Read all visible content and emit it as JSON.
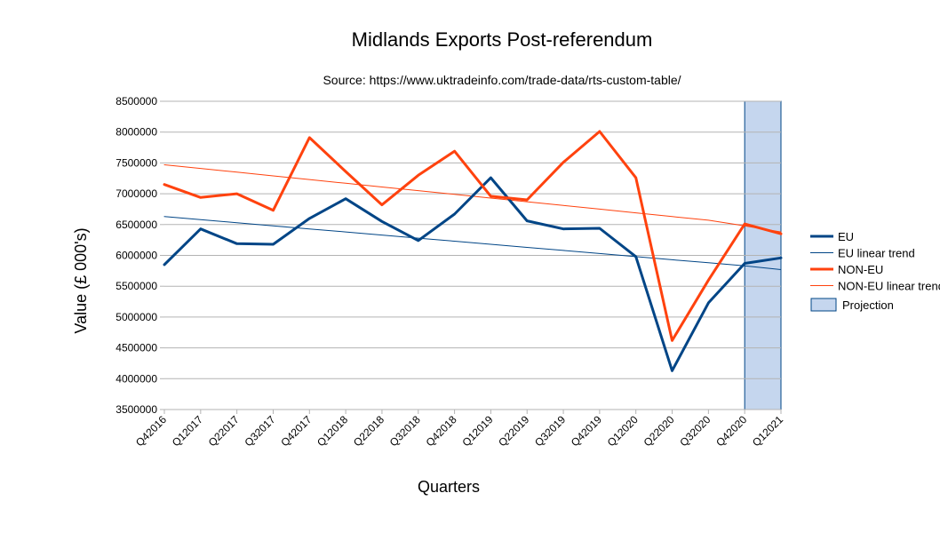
{
  "chart_data": {
    "type": "line",
    "title": "Midlands Exports Post-referendum",
    "subtitle": "Source: https://www.uktradeinfo.com/trade-data/rts-custom-table/",
    "xlabel": "Quarters",
    "ylabel": "Value (£ 000's)",
    "ylim": [
      3500000,
      8500000
    ],
    "ytick_step": 500000,
    "yticks": [
      "3500000",
      "4000000",
      "4500000",
      "5000000",
      "5500000",
      "6000000",
      "6500000",
      "7000000",
      "7500000",
      "8000000",
      "8500000"
    ],
    "grid": true,
    "legend_position": "right",
    "categories": [
      "Q42016",
      "Q12017",
      "Q22017",
      "Q32017",
      "Q42017",
      "Q12018",
      "Q22018",
      "Q32018",
      "Q42018",
      "Q12019",
      "Q22019",
      "Q32019",
      "Q42019",
      "Q12020",
      "Q22020",
      "Q32020",
      "Q42020",
      "Q12021"
    ],
    "series": [
      {
        "name": "EU",
        "color": "#004586",
        "style": "thick",
        "values": [
          5850000,
          6430000,
          6190000,
          6180000,
          6600000,
          6920000,
          6550000,
          6240000,
          6670000,
          7260000,
          6560000,
          6430000,
          6440000,
          5980000,
          4130000,
          5230000,
          5870000,
          5960000
        ]
      },
      {
        "name": "EU linear trend",
        "color": "#004586",
        "style": "thin",
        "values": [
          6630000,
          6580000,
          6530000,
          6480000,
          6430000,
          6380000,
          6330000,
          6280000,
          6230000,
          6180000,
          6130000,
          6080000,
          6030000,
          5980000,
          5930000,
          5880000,
          5830000,
          5770000
        ]
      },
      {
        "name": "NON-EU",
        "color": "#ff420e",
        "style": "thick",
        "values": [
          7150000,
          6940000,
          7000000,
          6730000,
          7910000,
          7360000,
          6820000,
          7300000,
          7690000,
          6960000,
          6900000,
          7510000,
          8010000,
          7260000,
          4620000,
          5600000,
          6510000,
          6350000
        ]
      },
      {
        "name": "NON-EU linear trend",
        "color": "#ff420e",
        "style": "thin",
        "values": [
          7470000,
          7410000,
          7350000,
          7290000,
          7230000,
          7170000,
          7110000,
          7050000,
          6990000,
          6930000,
          6870000,
          6810000,
          6750000,
          6690000,
          6630000,
          6570000,
          6480000,
          6380000
        ]
      }
    ],
    "projection": {
      "name": "Projection",
      "from": "Q42020",
      "to": "Q12021",
      "fill": "#c5d6ee",
      "stroke": "#004586"
    }
  }
}
